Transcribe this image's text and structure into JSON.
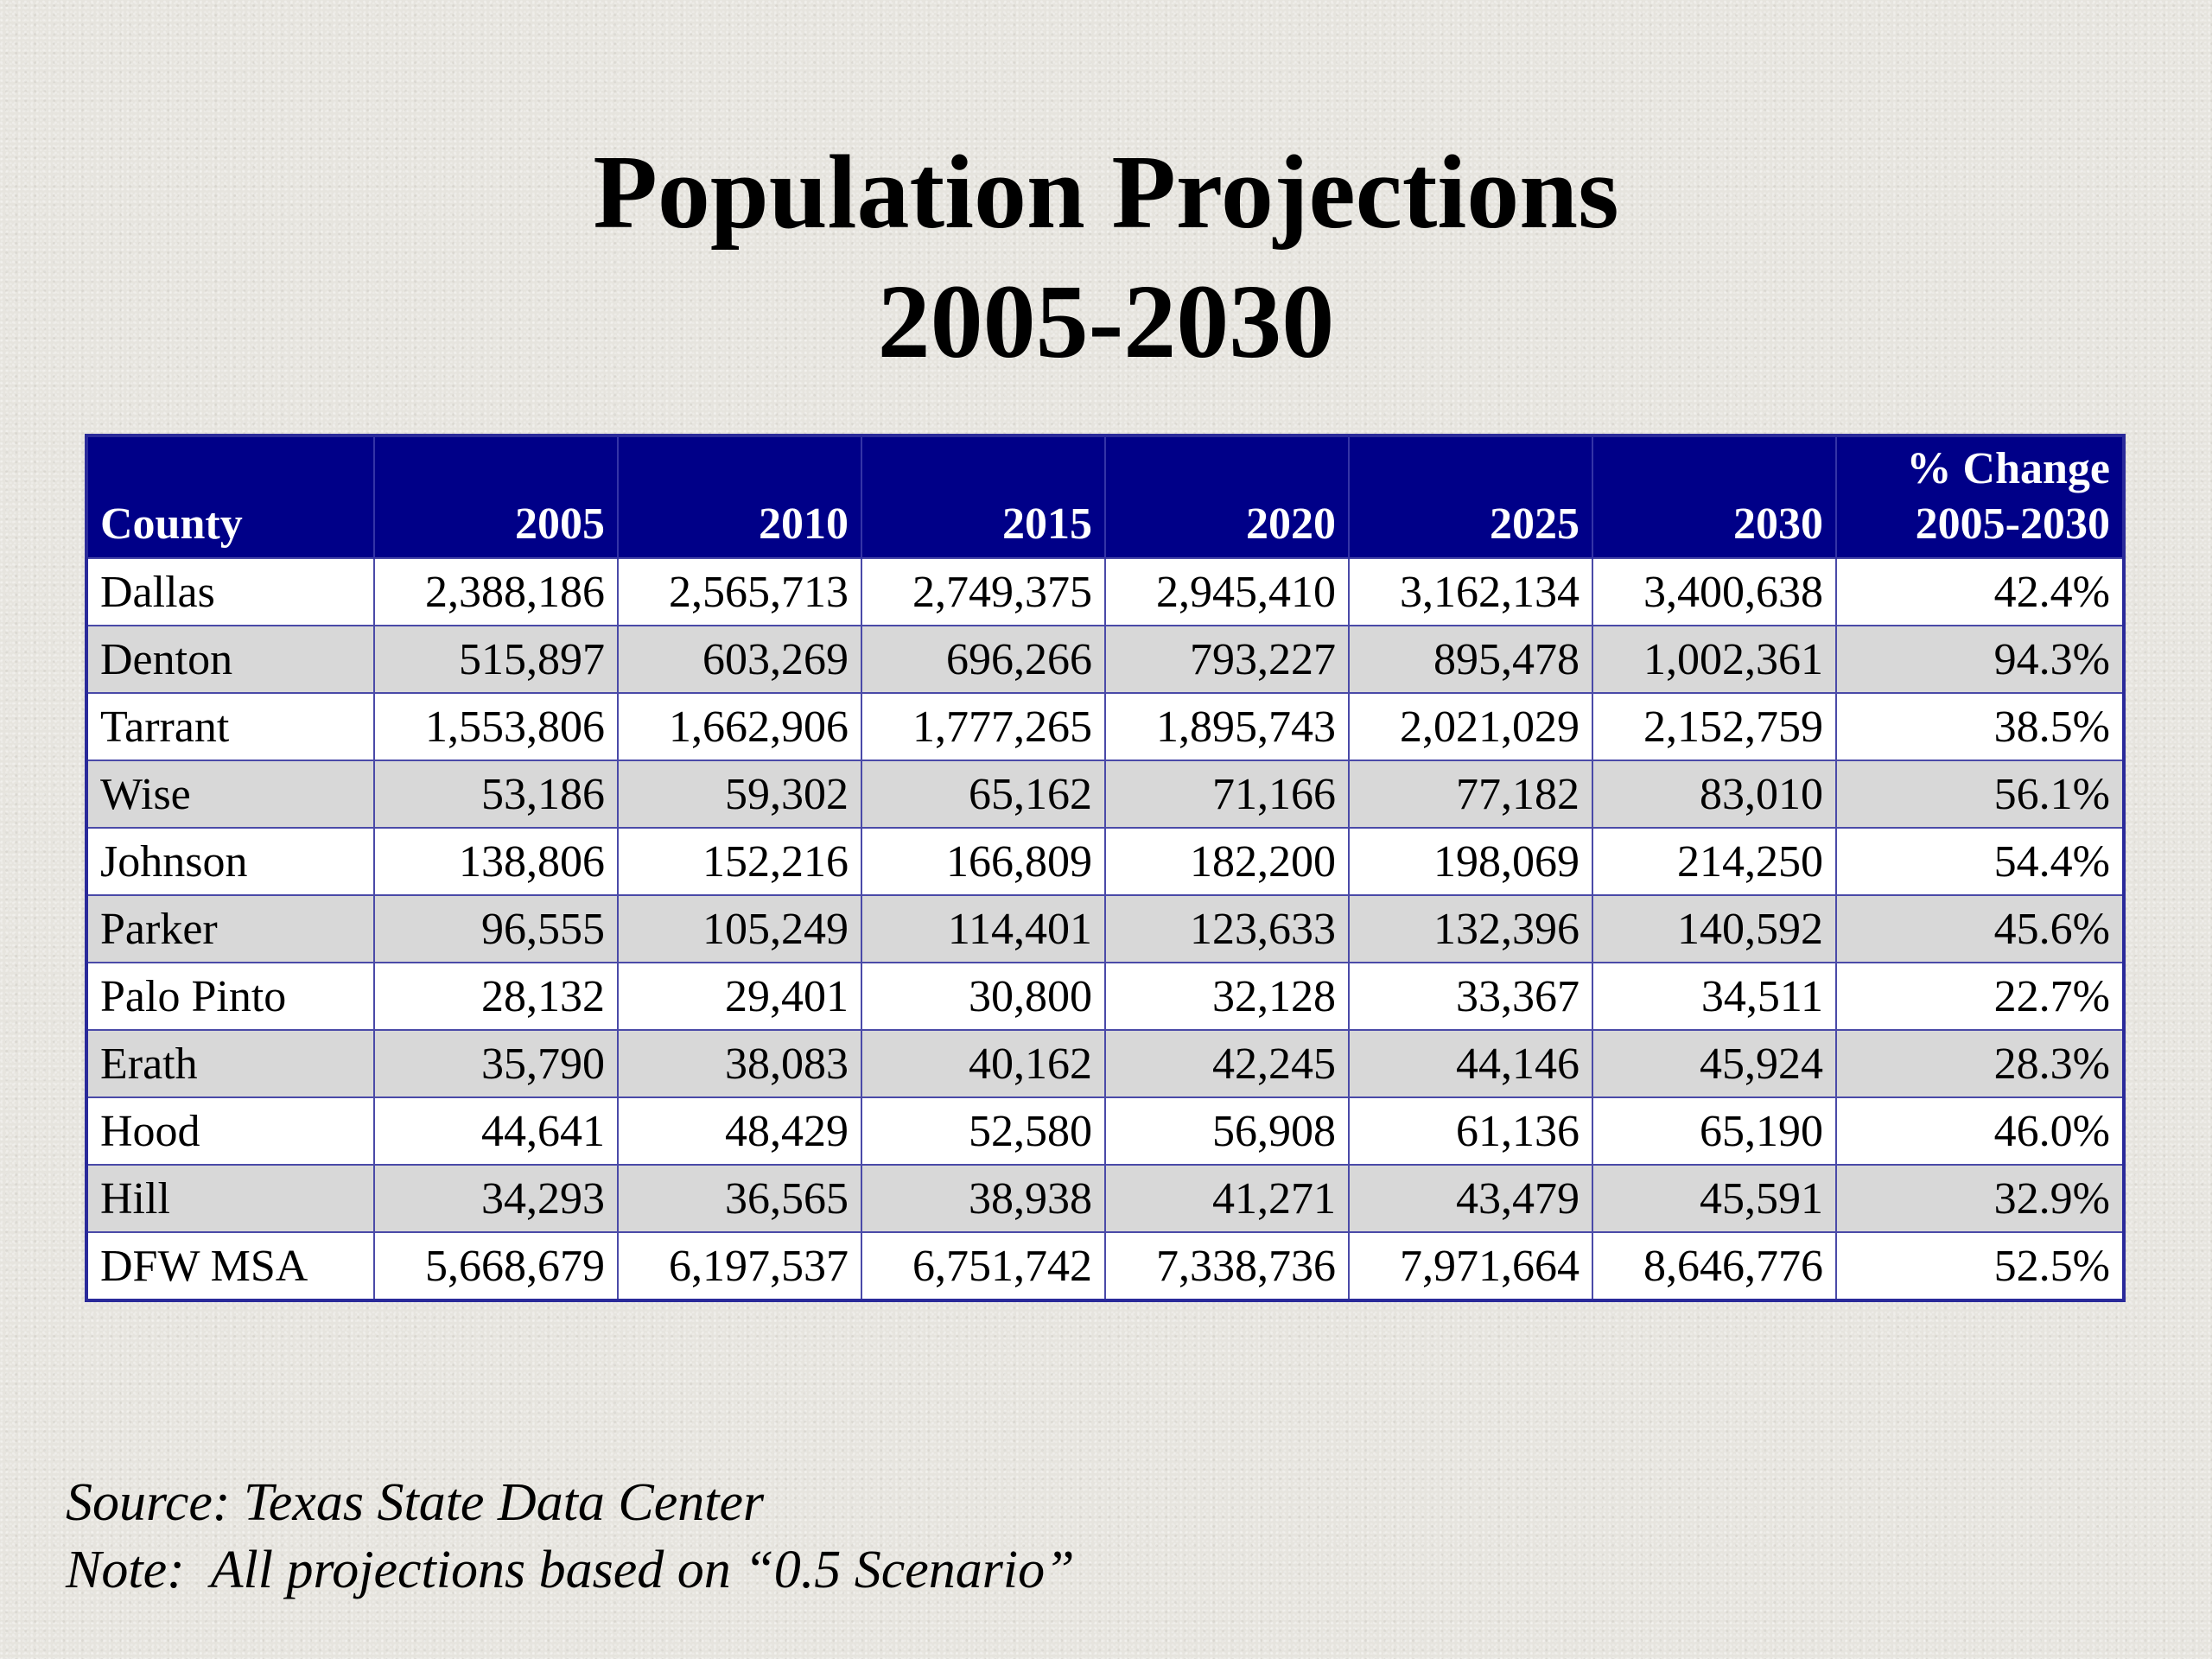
{
  "title": {
    "line1": "Population Projections",
    "line2": "2005-2030"
  },
  "table": {
    "headers": {
      "county": "County",
      "years": [
        "2005",
        "2010",
        "2015",
        "2020",
        "2025",
        "2030"
      ],
      "pct_line1": "% Change",
      "pct_line2": "2005-2030"
    },
    "rows": [
      {
        "county": "Dallas",
        "values": [
          "2,388,186",
          "2,565,713",
          "2,749,375",
          "2,945,410",
          "3,162,134",
          "3,400,638"
        ],
        "pct": "42.4%"
      },
      {
        "county": "Denton",
        "values": [
          "515,897",
          "603,269",
          "696,266",
          "793,227",
          "895,478",
          "1,002,361"
        ],
        "pct": "94.3%"
      },
      {
        "county": "Tarrant",
        "values": [
          "1,553,806",
          "1,662,906",
          "1,777,265",
          "1,895,743",
          "2,021,029",
          "2,152,759"
        ],
        "pct": "38.5%"
      },
      {
        "county": "Wise",
        "values": [
          "53,186",
          "59,302",
          "65,162",
          "71,166",
          "77,182",
          "83,010"
        ],
        "pct": "56.1%"
      },
      {
        "county": "Johnson",
        "values": [
          "138,806",
          "152,216",
          "166,809",
          "182,200",
          "198,069",
          "214,250"
        ],
        "pct": "54.4%"
      },
      {
        "county": "Parker",
        "values": [
          "96,555",
          "105,249",
          "114,401",
          "123,633",
          "132,396",
          "140,592"
        ],
        "pct": "45.6%"
      },
      {
        "county": "Palo Pinto",
        "values": [
          "28,132",
          "29,401",
          "30,800",
          "32,128",
          "33,367",
          "34,511"
        ],
        "pct": "22.7%"
      },
      {
        "county": "Erath",
        "values": [
          "35,790",
          "38,083",
          "40,162",
          "42,245",
          "44,146",
          "45,924"
        ],
        "pct": "28.3%"
      },
      {
        "county": "Hood",
        "values": [
          "44,641",
          "48,429",
          "52,580",
          "56,908",
          "61,136",
          "65,190"
        ],
        "pct": "46.0%"
      },
      {
        "county": "Hill",
        "values": [
          "34,293",
          "36,565",
          "38,938",
          "41,271",
          "43,479",
          "45,591"
        ],
        "pct": "32.9%"
      },
      {
        "county": "DFW MSA",
        "values": [
          "5,668,679",
          "6,197,537",
          "6,751,742",
          "7,338,736",
          "7,971,664",
          "8,646,776"
        ],
        "pct": "52.5%"
      }
    ]
  },
  "footnotes": {
    "source": "Source: Texas State Data Center",
    "note": "Note:  All projections based on “0.5 Scenario”"
  },
  "colors": {
    "header_bg": "#000088",
    "header_text": "#ffffff",
    "row_alt": "#d8d8d8",
    "row_base": "#ffffff",
    "border": "#4a4aa8"
  }
}
